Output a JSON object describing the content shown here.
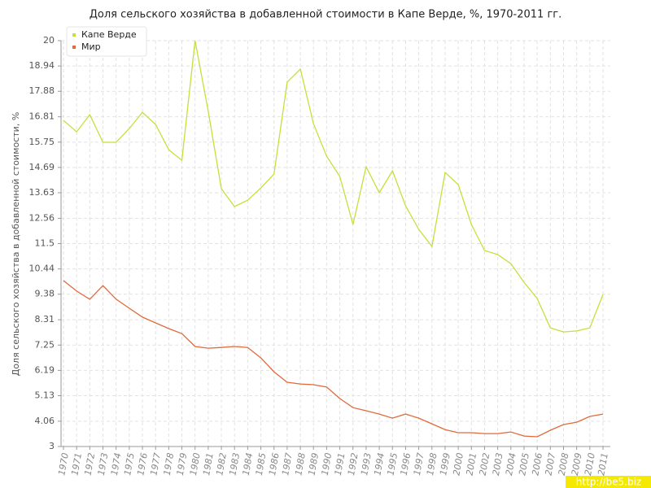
{
  "chart_data": {
    "type": "line",
    "title": "Доля сельского хозяйства в добавленной стоимости в Капе Верде, %, 1970-2011 гг.",
    "ylabel": "Доля сельского хозяйства в добавленной стоимости, %",
    "watermark": "http://be5.biz",
    "categories": [
      "1970",
      "1971",
      "1972",
      "1973",
      "1974",
      "1975",
      "1976",
      "1977",
      "1978",
      "1979",
      "1980",
      "1981",
      "1982",
      "1983",
      "1984",
      "1985",
      "1986",
      "1987",
      "1988",
      "1989",
      "1990",
      "1991",
      "1992",
      "1993",
      "1994",
      "1995",
      "1996",
      "1997",
      "1998",
      "1999",
      "2000",
      "2001",
      "2002",
      "2003",
      "2004",
      "2005",
      "2006",
      "2007",
      "2008",
      "2009",
      "2010",
      "2011"
    ],
    "series": [
      {
        "name": "Капе Верде",
        "color": "#c5e03a",
        "values": [
          16.66,
          16.18,
          16.9,
          15.74,
          15.74,
          16.32,
          17.0,
          16.49,
          15.43,
          14.99,
          20,
          17.04,
          13.8,
          13.05,
          13.32,
          13.83,
          14.41,
          18.26,
          18.81,
          16.52,
          15.16,
          14.31,
          12.3,
          14.72,
          13.63,
          14.55,
          13.08,
          12.1,
          11.38,
          14.48,
          13.97,
          12.3,
          11.21,
          11.04,
          10.66,
          9.88,
          9.2,
          7.97,
          7.8,
          7.84,
          7.97,
          9.37
        ]
      },
      {
        "name": "Мир",
        "color": "#e06a3a",
        "values": [
          9.95,
          9.51,
          9.17,
          9.74,
          9.17,
          8.79,
          8.42,
          8.18,
          7.94,
          7.73,
          7.19,
          7.12,
          7.15,
          7.19,
          7.15,
          6.71,
          6.13,
          5.69,
          5.62,
          5.59,
          5.49,
          5.01,
          4.63,
          4.5,
          4.36,
          4.19,
          4.36,
          4.19,
          3.95,
          3.71,
          3.58,
          3.58,
          3.54,
          3.54,
          3.61,
          3.44,
          3.41,
          3.68,
          3.92,
          4.02,
          4.26,
          4.36
        ]
      }
    ],
    "ylim": [
      3,
      20
    ],
    "yticks": [
      3,
      4.06,
      5.13,
      6.19,
      7.25,
      8.31,
      9.38,
      10.44,
      11.5,
      12.56,
      13.63,
      14.69,
      15.75,
      16.81,
      17.88,
      18.94,
      20
    ],
    "grid": true,
    "legend": "top-left"
  }
}
